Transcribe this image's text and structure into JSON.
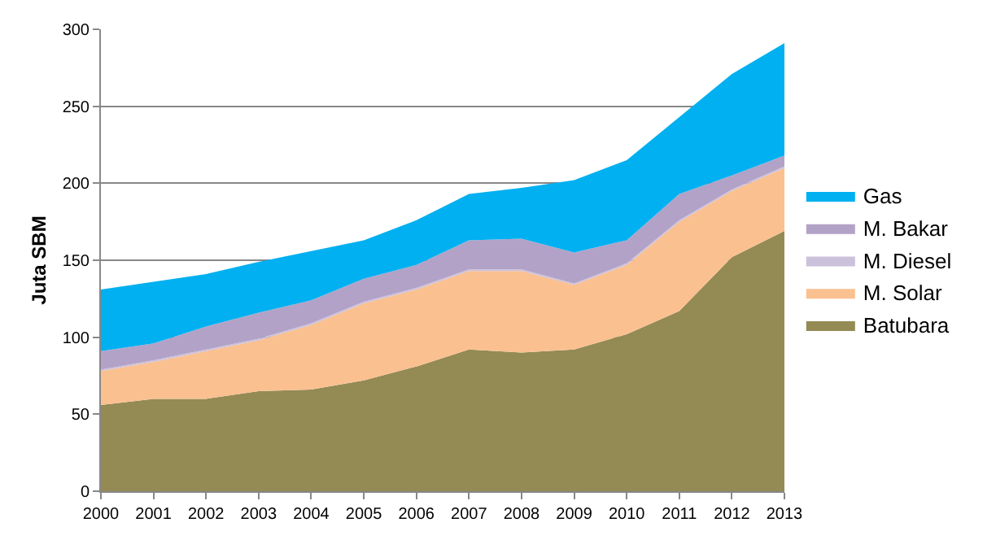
{
  "chart_data": {
    "type": "area",
    "stacked": true,
    "ylabel": "Juta SBM",
    "categories": [
      "2000",
      "2001",
      "2002",
      "2003",
      "2004",
      "2005",
      "2006",
      "2007",
      "2008",
      "2009",
      "2010",
      "2011",
      "2012",
      "2013"
    ],
    "series": [
      {
        "name": "Batubara",
        "color": "#948a54",
        "values": [
          56,
          60,
          60,
          65,
          66,
          72,
          81,
          92,
          90,
          92,
          102,
          117,
          152,
          169
        ]
      },
      {
        "name": "M. Solar",
        "color": "#fac090",
        "values": [
          22,
          24,
          31,
          33,
          42,
          50,
          50,
          51,
          53,
          42,
          45,
          58,
          43,
          41
        ]
      },
      {
        "name": "M. Diesel",
        "color": "#ccc1da",
        "values": [
          1,
          1,
          1,
          1,
          1,
          1,
          1,
          1,
          1,
          1,
          1,
          1,
          1,
          1
        ]
      },
      {
        "name": "M. Bakar",
        "color": "#b3a2c7",
        "values": [
          12,
          11,
          15,
          17,
          15,
          15,
          15,
          19,
          20,
          20,
          15,
          17,
          9,
          7
        ]
      },
      {
        "name": "Gas",
        "color": "#00b0f0",
        "values": [
          40,
          40,
          34,
          33,
          32,
          25,
          29,
          30,
          33,
          47,
          52,
          50,
          66,
          73
        ]
      }
    ],
    "ylim": [
      0,
      300
    ],
    "yticks": [
      0,
      50,
      100,
      150,
      200,
      250,
      300
    ],
    "grid": "y",
    "legend": "right"
  }
}
